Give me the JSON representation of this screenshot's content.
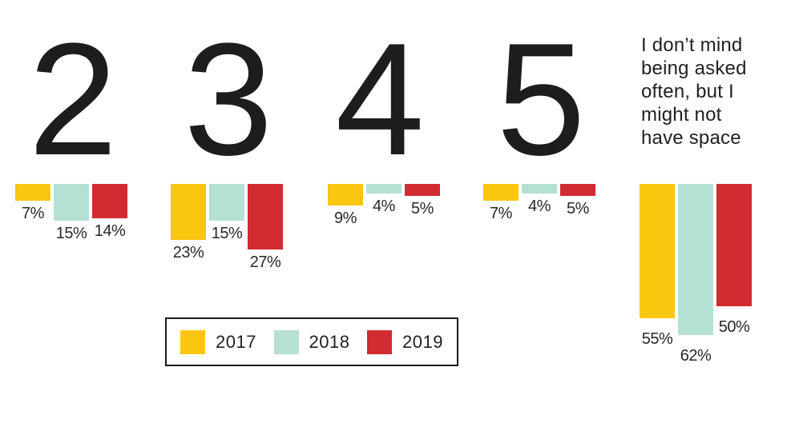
{
  "chart_data": {
    "type": "bar",
    "title": "",
    "categories": [
      "2",
      "3",
      "4",
      "5",
      "I don’t mind being asked often, but I might not have space"
    ],
    "series": [
      {
        "name": "2017",
        "color": "#FBC60F",
        "values": [
          7,
          23,
          9,
          7,
          55
        ]
      },
      {
        "name": "2018",
        "color": "#B5E0D4",
        "values": [
          15,
          15,
          4,
          4,
          62
        ]
      },
      {
        "name": "2019",
        "color": "#D22B31",
        "values": [
          14,
          27,
          5,
          5,
          50
        ]
      }
    ],
    "value_labels": [
      [
        "7%",
        "15%",
        "14%"
      ],
      [
        "23%",
        "15%",
        "27%"
      ],
      [
        "9%",
        "4%",
        "5%"
      ],
      [
        "7%",
        "4%",
        "5%"
      ],
      [
        "55%",
        "62%",
        "50%"
      ]
    ],
    "orientation": "columns hang downward from a shared top baseline",
    "axis": "none",
    "grid": false,
    "legend_position": "bottom-center-boxed",
    "ylim": [
      0,
      62
    ],
    "pixels_per_percent": 3.05
  },
  "groups": [
    {
      "heading": "2",
      "labels": [
        "7%",
        "15%",
        "14%"
      ]
    },
    {
      "heading": "3",
      "labels": [
        "23%",
        "15%",
        "27%"
      ]
    },
    {
      "heading": "4",
      "labels": [
        "9%",
        "4%",
        "5%"
      ]
    },
    {
      "heading": "5",
      "labels": [
        "7%",
        "4%",
        "5%"
      ]
    },
    {
      "heading": "I don’t mind\nbeing asked\noften, but I\nmight not\nhave space",
      "labels": [
        "55%",
        "62%",
        "50%"
      ]
    }
  ],
  "legend": {
    "items": [
      {
        "label": "2017",
        "color": "#FBC60F"
      },
      {
        "label": "2018",
        "color": "#B5E0D4"
      },
      {
        "label": "2019",
        "color": "#D22B31"
      }
    ]
  },
  "colors": {
    "background": "#FFFFFF",
    "text": "#231F20",
    "legend_border": "#1A1A1A"
  }
}
